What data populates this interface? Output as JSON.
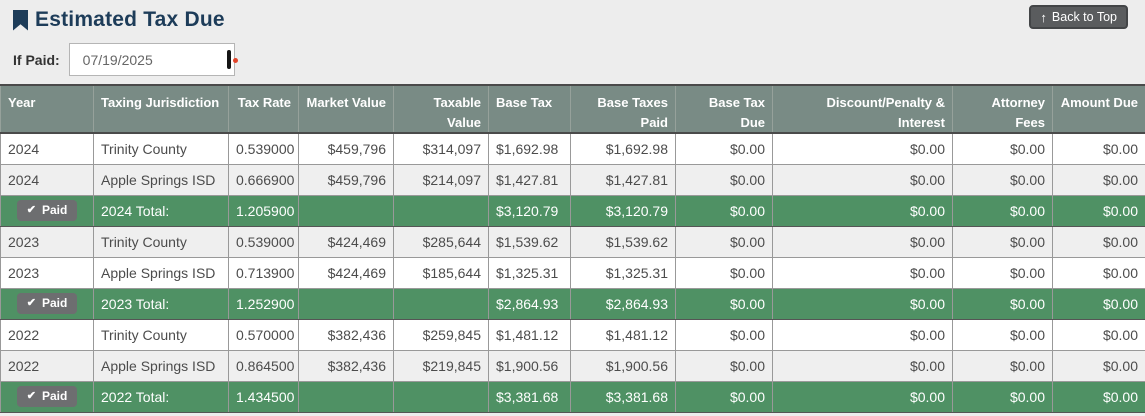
{
  "page": {
    "title": "Estimated Tax Due",
    "back_to_top_label": "Back to Top"
  },
  "if_paid": {
    "label": "If Paid:",
    "date_value": "07/19/2025"
  },
  "table": {
    "columns": [
      {
        "key": "year",
        "label": "Year"
      },
      {
        "key": "jurisdiction",
        "label": "Taxing Jurisdiction"
      },
      {
        "key": "tax_rate",
        "label": "Tax Rate"
      },
      {
        "key": "market_value",
        "label": "Market Value"
      },
      {
        "key": "taxable_value",
        "label": "Taxable Value"
      },
      {
        "key": "base_tax",
        "label": "Base Tax"
      },
      {
        "key": "base_taxes_paid",
        "label": "Base Taxes Paid"
      },
      {
        "key": "base_tax_due",
        "label": "Base Tax Due"
      },
      {
        "key": "discount_penalty_interest",
        "label": "Discount/Penalty & Interest"
      },
      {
        "key": "attorney_fees",
        "label": "Attorney Fees"
      },
      {
        "key": "amount_due",
        "label": "Amount Due"
      }
    ],
    "rows": [
      {
        "type": "data",
        "year": "2024",
        "jurisdiction": "Trinity County",
        "tax_rate": "0.539000",
        "market_value": "$459,796",
        "taxable_value": "$314,097",
        "base_tax": "$1,692.98",
        "base_taxes_paid": "$1,692.98",
        "base_tax_due": "$0.00",
        "discount_penalty_interest": "$0.00",
        "attorney_fees": "$0.00",
        "amount_due": "$0.00"
      },
      {
        "type": "data",
        "year": "2024",
        "jurisdiction": "Apple Springs ISD",
        "tax_rate": "0.666900",
        "market_value": "$459,796",
        "taxable_value": "$214,097",
        "base_tax": "$1,427.81",
        "base_taxes_paid": "$1,427.81",
        "base_tax_due": "$0.00",
        "discount_penalty_interest": "$0.00",
        "attorney_fees": "$0.00",
        "amount_due": "$0.00"
      },
      {
        "type": "total",
        "badge_label": "Paid",
        "label": "2024 Total:",
        "tax_rate": "1.205900",
        "market_value": "",
        "taxable_value": "",
        "base_tax": "$3,120.79",
        "base_taxes_paid": "$3,120.79",
        "base_tax_due": "$0.00",
        "discount_penalty_interest": "$0.00",
        "attorney_fees": "$0.00",
        "amount_due": "$0.00"
      },
      {
        "type": "data",
        "year": "2023",
        "jurisdiction": "Trinity County",
        "tax_rate": "0.539000",
        "market_value": "$424,469",
        "taxable_value": "$285,644",
        "base_tax": "$1,539.62",
        "base_taxes_paid": "$1,539.62",
        "base_tax_due": "$0.00",
        "discount_penalty_interest": "$0.00",
        "attorney_fees": "$0.00",
        "amount_due": "$0.00"
      },
      {
        "type": "data",
        "year": "2023",
        "jurisdiction": "Apple Springs ISD",
        "tax_rate": "0.713900",
        "market_value": "$424,469",
        "taxable_value": "$185,644",
        "base_tax": "$1,325.31",
        "base_taxes_paid": "$1,325.31",
        "base_tax_due": "$0.00",
        "discount_penalty_interest": "$0.00",
        "attorney_fees": "$0.00",
        "amount_due": "$0.00"
      },
      {
        "type": "total",
        "badge_label": "Paid",
        "label": "2023 Total:",
        "tax_rate": "1.252900",
        "market_value": "",
        "taxable_value": "",
        "base_tax": "$2,864.93",
        "base_taxes_paid": "$2,864.93",
        "base_tax_due": "$0.00",
        "discount_penalty_interest": "$0.00",
        "attorney_fees": "$0.00",
        "amount_due": "$0.00"
      },
      {
        "type": "data",
        "year": "2022",
        "jurisdiction": "Trinity County",
        "tax_rate": "0.570000",
        "market_value": "$382,436",
        "taxable_value": "$259,845",
        "base_tax": "$1,481.12",
        "base_taxes_paid": "$1,481.12",
        "base_tax_due": "$0.00",
        "discount_penalty_interest": "$0.00",
        "attorney_fees": "$0.00",
        "amount_due": "$0.00"
      },
      {
        "type": "data",
        "year": "2022",
        "jurisdiction": "Apple Springs ISD",
        "tax_rate": "0.864500",
        "market_value": "$382,436",
        "taxable_value": "$219,845",
        "base_tax": "$1,900.56",
        "base_taxes_paid": "$1,900.56",
        "base_tax_due": "$0.00",
        "discount_penalty_interest": "$0.00",
        "attorney_fees": "$0.00",
        "amount_due": "$0.00"
      },
      {
        "type": "total",
        "badge_label": "Paid",
        "label": "2022 Total:",
        "tax_rate": "1.434500",
        "market_value": "",
        "taxable_value": "",
        "base_tax": "$3,381.68",
        "base_taxes_paid": "$3,381.68",
        "base_tax_due": "$0.00",
        "discount_penalty_interest": "$0.00",
        "attorney_fees": "$0.00",
        "amount_due": "$0.00"
      }
    ]
  },
  "colors": {
    "header_bg": "#798B85",
    "total_bg": "#4F9164",
    "badge_bg": "#6D6E70",
    "title_color": "#1D3C59",
    "calendar_red": "#E2442A",
    "page_bg": "#EDEDED"
  }
}
